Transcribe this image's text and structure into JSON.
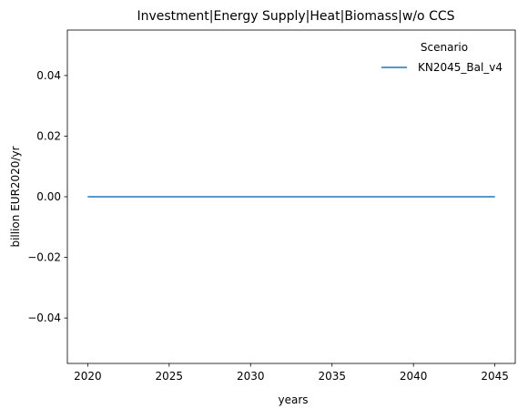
{
  "chart_data": {
    "type": "line",
    "title": "Investment|Energy Supply|Heat|Biomass|w/o CCS",
    "xlabel": "years",
    "ylabel": "billion EUR2020/yr",
    "xlim": [
      2018.75,
      2046.25
    ],
    "ylim": [
      -0.055,
      0.055
    ],
    "xticks": [
      2020,
      2025,
      2030,
      2035,
      2040,
      2045
    ],
    "yticks": [
      0.04,
      0.02,
      0.0,
      -0.02,
      -0.04
    ],
    "ytick_labels": [
      "0.04",
      "0.02",
      "0.00",
      "−0.02",
      "−0.04"
    ],
    "grid": false,
    "legend": {
      "title": "Scenario",
      "placement": "top-right"
    },
    "series": [
      {
        "name": "KN2045_Bal_v4",
        "color": "#1f77b4",
        "x": [
          2020,
          2025,
          2030,
          2035,
          2040,
          2045
        ],
        "y": [
          0,
          0,
          0,
          0,
          0,
          0
        ]
      }
    ]
  }
}
